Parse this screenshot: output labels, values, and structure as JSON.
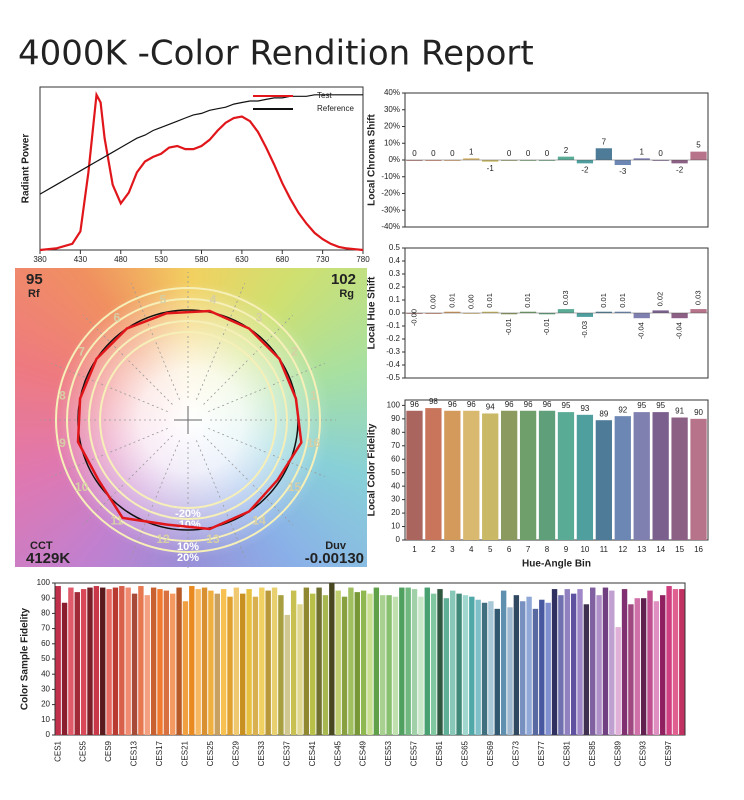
{
  "title": "4000K -Color Rendition Report",
  "chart_data": [
    {
      "type": "line",
      "y_label": "Radiant Power",
      "legend": "upper right",
      "x": [
        380,
        400,
        420,
        430,
        440,
        450,
        455,
        460,
        470,
        480,
        490,
        500,
        510,
        520,
        530,
        540,
        550,
        560,
        570,
        580,
        590,
        600,
        610,
        620,
        630,
        640,
        650,
        660,
        670,
        680,
        690,
        700,
        710,
        720,
        730,
        740,
        750,
        760,
        770,
        780
      ],
      "xlim": [
        380,
        780
      ],
      "xticks": [
        380,
        430,
        480,
        530,
        580,
        630,
        680,
        730,
        780
      ],
      "ylim": [
        0,
        1.05
      ],
      "series": [
        {
          "name": "Test",
          "color": "#e0161b",
          "values": [
            0,
            0.01,
            0.04,
            0.12,
            0.5,
            1.0,
            0.95,
            0.72,
            0.42,
            0.3,
            0.37,
            0.5,
            0.57,
            0.6,
            0.62,
            0.66,
            0.67,
            0.65,
            0.65,
            0.67,
            0.71,
            0.77,
            0.82,
            0.85,
            0.86,
            0.83,
            0.76,
            0.66,
            0.55,
            0.43,
            0.33,
            0.24,
            0.17,
            0.11,
            0.07,
            0.04,
            0.02,
            0.01,
            0.005,
            0
          ]
        },
        {
          "name": "Reference",
          "color": "#111111",
          "values": [
            0.36,
            0.42,
            0.48,
            0.51,
            0.54,
            0.57,
            0.585,
            0.6,
            0.63,
            0.66,
            0.69,
            0.72,
            0.74,
            0.77,
            0.79,
            0.81,
            0.83,
            0.85,
            0.87,
            0.88,
            0.9,
            0.91,
            0.92,
            0.94,
            0.95,
            0.96,
            0.96,
            0.97,
            0.98,
            0.98,
            0.99,
            0.99,
            0.99,
            1,
            1,
            1,
            1,
            1,
            1,
            1
          ]
        }
      ]
    },
    {
      "type": "vector",
      "rf": 95,
      "rf_label": "Rf",
      "rg": 102,
      "rg_label": "Rg",
      "cct_label": "CCT",
      "cct": "4129K",
      "duv_label": "Duv",
      "duv": "-0.00130",
      "bin_labels": [
        1,
        2,
        3,
        4,
        5,
        6,
        7,
        8,
        9,
        10,
        11,
        12,
        13,
        14,
        15,
        16
      ],
      "rings": [
        {
          "value": -20,
          "label": "-20%"
        },
        {
          "value": -10,
          "label": "-10%"
        },
        {
          "value": 10,
          "label": "10%"
        },
        {
          "value": 20,
          "label": "20%"
        }
      ],
      "test_color": "#e0161b",
      "reference_color": "#111111"
    },
    {
      "type": "bar",
      "y_label": "Local Chroma Shift",
      "values": [
        0,
        0,
        0,
        1,
        -1,
        0,
        0,
        0,
        2,
        -2,
        7,
        -3,
        1,
        0,
        -2,
        5
      ],
      "colors": [
        "#a9655e",
        "#c9755c",
        "#d49a5c",
        "#d9b870",
        "#c9b865",
        "#8b9b5f",
        "#6f9f6a",
        "#5fa07a",
        "#5aab96",
        "#4f9f9f",
        "#4e7c98",
        "#6d87b4",
        "#7f7fb0",
        "#7b5f8d",
        "#8c5f84",
        "#b7738a"
      ],
      "ylim": [
        -40,
        40
      ],
      "yticks": [
        {
          "value": 40,
          "label": "40%"
        },
        {
          "value": 30,
          "label": "30%"
        },
        {
          "value": 20,
          "label": "20%"
        },
        {
          "value": 10,
          "label": "10%"
        },
        {
          "value": 0,
          "label": "0%"
        },
        {
          "value": -10,
          "label": "-10%"
        },
        {
          "value": -20,
          "label": "-20%"
        },
        {
          "value": -30,
          "label": "-30%"
        },
        {
          "value": -40,
          "label": "-40%"
        }
      ]
    },
    {
      "type": "bar",
      "y_label": "Local Hue Shift",
      "values": [
        0,
        0,
        0.01,
        0,
        0.01,
        -0.01,
        0.01,
        -0.01,
        0.03,
        -0.03,
        0.01,
        0.01,
        -0.04,
        0.02,
        -0.04,
        0.03
      ],
      "value_labels": [
        "-0.00",
        "0.00",
        "0.01",
        "0.00",
        "0.01",
        "-0.01",
        "0.01",
        "-0.01",
        "0.03",
        "-0.03",
        "0.01",
        "0.01",
        "-0.04",
        "0.02",
        "-0.04",
        "0.03"
      ],
      "colors": [
        "#a9655e",
        "#c9755c",
        "#d49a5c",
        "#d9b870",
        "#c9b865",
        "#8b9b5f",
        "#6f9f6a",
        "#5fa07a",
        "#5aab96",
        "#4f9f9f",
        "#4e7c98",
        "#6d87b4",
        "#7f7fb0",
        "#7b5f8d",
        "#8c5f84",
        "#b7738a"
      ],
      "ylim": [
        -0.5,
        0.5
      ],
      "yticks": [
        0.5,
        0.4,
        0.3,
        0.2,
        0.1,
        {
          "value": 0,
          "label": "0.0"
        },
        -0.1,
        -0.2,
        -0.3,
        -0.4,
        -0.5
      ]
    },
    {
      "type": "bar",
      "y_label": "Local Color Fidelity",
      "x_label": "Hue-Angle Bin",
      "categories": [
        1,
        2,
        3,
        4,
        5,
        6,
        7,
        8,
        9,
        10,
        11,
        12,
        13,
        14,
        15,
        16
      ],
      "values": [
        96,
        98,
        96,
        96,
        94,
        96,
        96,
        96,
        95,
        93,
        89,
        92,
        95,
        95,
        91,
        90
      ],
      "colors": [
        "#a9655e",
        "#c9755c",
        "#d49a5c",
        "#d9b870",
        "#c9b865",
        "#8b9b5f",
        "#6f9f6a",
        "#5fa07a",
        "#5aab96",
        "#4f9f9f",
        "#4e7c98",
        "#6d87b4",
        "#7f7fb0",
        "#7b5f8d",
        "#8c5f84",
        "#b7738a"
      ],
      "ylim": [
        0,
        104
      ],
      "yticks": [
        100,
        90,
        80,
        70,
        60,
        50,
        40,
        30,
        20,
        10,
        0
      ]
    },
    {
      "type": "bar",
      "y_label": "Color Sample Fidelity",
      "categories": [
        "CES1",
        null,
        null,
        null,
        "CES5",
        null,
        null,
        null,
        "CES9",
        null,
        null,
        null,
        "CES13",
        null,
        null,
        null,
        "CES17",
        null,
        null,
        null,
        "CES21",
        null,
        null,
        null,
        "CES25",
        null,
        null,
        null,
        "CES29",
        null,
        null,
        null,
        "CES33",
        null,
        null,
        null,
        "CES37",
        null,
        null,
        null,
        "CES41",
        null,
        null,
        null,
        "CES45",
        null,
        null,
        null,
        "CES49",
        null,
        null,
        null,
        "CES53",
        null,
        null,
        null,
        "CES57",
        null,
        null,
        null,
        "CES61",
        null,
        null,
        null,
        "CES65",
        null,
        null,
        null,
        "CES69",
        null,
        null,
        null,
        "CES73",
        null,
        null,
        null,
        "CES77",
        null,
        null,
        null,
        "CES81",
        null,
        null,
        null,
        "CES85",
        null,
        null,
        null,
        "CES89",
        null,
        null,
        null,
        "CES93",
        null,
        null,
        null,
        "CES97",
        null,
        null
      ],
      "values": [
        98,
        87,
        97,
        94,
        96,
        97,
        98,
        97,
        96,
        97,
        98,
        97,
        93,
        98,
        92,
        97,
        96,
        95,
        93,
        97,
        88,
        98,
        96,
        97,
        95,
        93,
        96,
        91,
        97,
        93,
        96,
        91,
        97,
        95,
        97,
        92,
        79,
        95,
        86,
        97,
        93,
        97,
        92,
        100,
        95,
        91,
        97,
        94,
        95,
        93,
        97,
        92,
        92,
        91,
        97,
        97,
        96,
        91,
        97,
        93,
        96,
        90,
        95,
        93,
        92,
        91,
        89,
        87,
        88,
        83,
        95,
        84,
        92,
        88,
        91,
        83,
        89,
        87,
        96,
        92,
        96,
        93,
        96,
        86,
        97,
        92,
        97,
        95,
        71,
        96,
        86,
        90,
        90,
        95,
        88,
        92,
        98,
        96,
        96
      ],
      "colors": [
        "#c0304a",
        "#8a1e2e",
        "#e05a6a",
        "#a02a38",
        "#d84858",
        "#7a2028",
        "#c83848",
        "#5a1a1e",
        "#e86a60",
        "#b83a30",
        "#d8604a",
        "#f08a70",
        "#a84a38",
        "#e87850",
        "#f4a080",
        "#c86030",
        "#f07a30",
        "#d87040",
        "#f49a60",
        "#b85a28",
        "#f0a040",
        "#e88a20",
        "#f8b860",
        "#d89030",
        "#f0b040",
        "#c8a060",
        "#f8c050",
        "#e0a030",
        "#f0c870",
        "#c89020",
        "#e8c040",
        "#d8b050",
        "#f0d060",
        "#b89838",
        "#e8d070",
        "#a8a040",
        "#d0c890",
        "#c8c050",
        "#e0d890",
        "#908830",
        "#b8c048",
        "#707030",
        "#a8b850",
        "#484820",
        "#c0d070",
        "#88a040",
        "#a0c060",
        "#789838",
        "#90b850",
        "#c8e090",
        "#60a048",
        "#a8d090",
        "#88c070",
        "#c0e0b0",
        "#50a060",
        "#70b880",
        "#a0d0a8",
        "#c8e8c8",
        "#48a070",
        "#80c8a0",
        "#305840",
        "#60b098",
        "#88c8b8",
        "#408878",
        "#a0d8d0",
        "#50a8a8",
        "#80c0c8",
        "#407080",
        "#a8c8d8",
        "#305870",
        "#6090b0",
        "#a0b8d0",
        "#304860",
        "#7890c0",
        "#90a8d8",
        "#5868a0",
        "#4858a0",
        "#8090d0",
        "#303060",
        "#7070b0",
        "#9080c0",
        "#6050a0",
        "#a088c8",
        "#403050",
        "#8060a0",
        "#b090c8",
        "#704080",
        "#c0a0d0",
        "#e0b0d8",
        "#803070",
        "#a04880",
        "#d070a8",
        "#602050",
        "#c05090",
        "#e090c0",
        "#902060",
        "#d04080",
        "#e06090",
        "#c03060"
      ],
      "ylim": [
        0,
        100
      ],
      "yticks": [
        100,
        90,
        80,
        70,
        60,
        50,
        40,
        30,
        20,
        10,
        0
      ]
    }
  ]
}
